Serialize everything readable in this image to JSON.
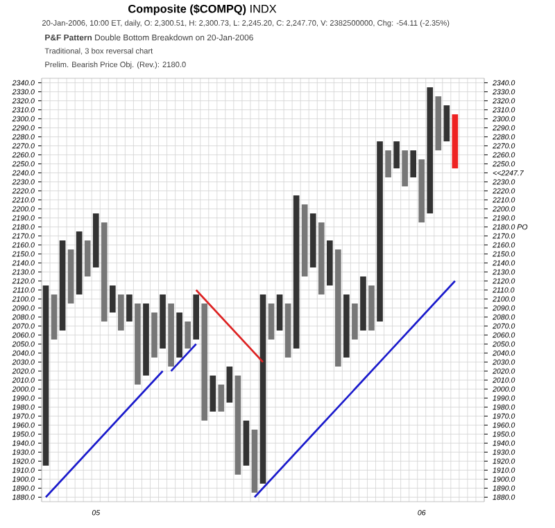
{
  "chart_data": {
    "type": "bar",
    "title": "**Composite ($COMPQ)** INDX",
    "subtitle": "20-Jan-2006, 10:00 ET, daily, O: 2,300.51, H: 2,300.73, L: 2,245.20, C: 2,247.70, V: 2382500000, Chg: -54.11 (-2.35%)",
    "annotations": [
      "**P&F Pattern** Double Bottom Breakdown on 20-Jan-2006",
      "Traditional, 3 box reversal chart",
      "Prelim. Bearish Price Obj. (Rev.): 2180.0"
    ],
    "series": [
      {
        "base": [
          1915,
          2055,
          2065,
          2095,
          2105,
          2125,
          2135,
          2075,
          2085,
          2065,
          2075,
          2005,
          2015,
          2035,
          2045,
          2025,
          2035,
          2045,
          2055,
          1965,
          1975,
          1975,
          1985,
          1905,
          1915,
          1885,
          1895,
          2055,
          2065,
          2035,
          2045,
          2125,
          2135,
          2105,
          2115,
          2025,
          2035,
          2055,
          2065,
          2065,
          2075,
          2235,
          2245,
          2225,
          2235,
          2185,
          2195,
          2265,
          2275,
          2245,
          null,
          null,
          null
        ],
        "values": [
          200,
          50,
          100,
          60,
          70,
          40,
          60,
          110,
          30,
          40,
          30,
          90,
          80,
          50,
          60,
          70,
          50,
          30,
          50,
          130,
          40,
          30,
          40,
          110,
          50,
          70,
          210,
          40,
          40,
          60,
          170,
          80,
          60,
          80,
          50,
          130,
          70,
          40,
          60,
          50,
          200,
          30,
          30,
          40,
          30,
          70,
          140,
          60,
          40,
          60,
          null,
          null,
          null
        ],
        "colors": [
          "#333333",
          "#777777",
          "#333333",
          "#777777",
          "#333333",
          "#777777",
          "#333333",
          "#777777",
          "#333333",
          "#777777",
          "#333333",
          "#777777",
          "#333333",
          "#777777",
          "#333333",
          "#777777",
          "#333333",
          "#777777",
          "#333333",
          "#777777",
          "#333333",
          "#777777",
          "#333333",
          "#777777",
          "#333333",
          "#777777",
          "#333333",
          "#777777",
          "#333333",
          "#777777",
          "#333333",
          "#777777",
          "#333333",
          "#777777",
          "#333333",
          "#777777",
          "#333333",
          "#777777",
          "#333333",
          "#777777",
          "#333333",
          "#777777",
          "#333333",
          "#777777",
          "#333333",
          "#777777",
          "#333333",
          "#777777",
          "#333333",
          "#ee2222",
          null,
          null,
          null
        ]
      },
      {
        "type": "line",
        "color": "#1a1acc",
        "values": [
          1880,
          1890,
          1900,
          1910,
          1920,
          1930,
          1940,
          1950,
          1960,
          1970,
          1980,
          1990,
          2000,
          2010,
          2020,
          null,
          null,
          null,
          null,
          null,
          null,
          null,
          null,
          null,
          null,
          null,
          null,
          null,
          null,
          null,
          null,
          null,
          null,
          null,
          null,
          null,
          null,
          null,
          null,
          null,
          null,
          null,
          null,
          null,
          null,
          null,
          null,
          null,
          null,
          null,
          null,
          null,
          null
        ]
      },
      {
        "type": "line",
        "color": "#1a1acc",
        "values": [
          null,
          null,
          null,
          null,
          null,
          null,
          null,
          null,
          null,
          null,
          null,
          null,
          null,
          null,
          null,
          2020,
          2030,
          2040,
          2050,
          null,
          null,
          null,
          null,
          null,
          null,
          null,
          null,
          null,
          null,
          null,
          null,
          null,
          null,
          null,
          null,
          null,
          null,
          null,
          null,
          null,
          null,
          null,
          null,
          null,
          null,
          null,
          null,
          null,
          null,
          null,
          null,
          null,
          null
        ]
      },
      {
        "type": "line",
        "color": "#1a1acc",
        "values": [
          null,
          null,
          null,
          null,
          null,
          null,
          null,
          null,
          null,
          null,
          null,
          null,
          null,
          null,
          null,
          null,
          null,
          null,
          null,
          null,
          null,
          null,
          null,
          null,
          null,
          1880,
          1890,
          1900,
          1910,
          1920,
          1930,
          1940,
          1950,
          1960,
          1970,
          1980,
          1990,
          2000,
          2010,
          2020,
          2030,
          2040,
          2050,
          2060,
          2070,
          2080,
          2090,
          2100,
          2110,
          2120,
          null,
          null,
          null
        ]
      },
      {
        "type": "line",
        "color": "#dd2222",
        "values": [
          null,
          null,
          null,
          null,
          null,
          null,
          null,
          null,
          null,
          null,
          null,
          null,
          null,
          null,
          null,
          null,
          null,
          null,
          2110,
          2100,
          2090,
          2080,
          2070,
          2060,
          2050,
          2040,
          2030,
          null,
          null,
          null,
          null,
          null,
          null,
          null,
          null,
          null,
          null,
          null,
          null,
          null,
          null,
          null,
          null,
          null,
          null,
          null,
          null,
          null,
          null,
          null,
          null,
          null,
          null
        ]
      }
    ],
    "categories": [
      null,
      null,
      null,
      null,
      null,
      null,
      "05",
      null,
      null,
      null,
      null,
      null,
      null,
      null,
      null,
      null,
      null,
      null,
      null,
      null,
      null,
      null,
      null,
      null,
      null,
      null,
      null,
      null,
      null,
      null,
      null,
      null,
      null,
      null,
      null,
      null,
      null,
      null,
      null,
      null,
      null,
      null,
      null,
      null,
      null,
      "06",
      null,
      null,
      null,
      null,
      null,
      null,
      null
    ],
    "ylim": [
      1875,
      2345
    ],
    "yticks": [
      {
        "value": 1880,
        "label": "1880.0"
      },
      {
        "value": 1890,
        "label": "1890.0"
      },
      {
        "value": 1900,
        "label": "1900.0"
      },
      {
        "value": 1910,
        "label": "1910.0"
      },
      {
        "value": 1920,
        "label": "1920.0"
      },
      {
        "value": 1930,
        "label": "1930.0"
      },
      {
        "value": 1940,
        "label": "1940.0"
      },
      {
        "value": 1950,
        "label": "1950.0"
      },
      {
        "value": 1960,
        "label": "1960.0"
      },
      {
        "value": 1970,
        "label": "1970.0"
      },
      {
        "value": 1980,
        "label": "1980.0"
      },
      {
        "value": 1990,
        "label": "1990.0"
      },
      {
        "value": 2000,
        "label": "2000.0"
      },
      {
        "value": 2010,
        "label": "2010.0"
      },
      {
        "value": 2020,
        "label": "2020.0"
      },
      {
        "value": 2030,
        "label": "2030.0"
      },
      {
        "value": 2040,
        "label": "2040.0"
      },
      {
        "value": 2050,
        "label": "2050.0"
      },
      {
        "value": 2060,
        "label": "2060.0"
      },
      {
        "value": 2070,
        "label": "2070.0"
      },
      {
        "value": 2080,
        "label": "2080.0"
      },
      {
        "value": 2090,
        "label": "2090.0"
      },
      {
        "value": 2100,
        "label": "2100.0"
      },
      {
        "value": 2110,
        "label": "2110.0"
      },
      {
        "value": 2120,
        "label": "2120.0"
      },
      {
        "value": 2130,
        "label": "2130.0"
      },
      {
        "value": 2140,
        "label": "2140.0"
      },
      {
        "value": 2150,
        "label": "2150.0"
      },
      {
        "value": 2160,
        "label": "2160.0"
      },
      {
        "value": 2170,
        "label": "2170.0"
      },
      {
        "value": 2180,
        "label": "2180.0"
      },
      {
        "value": 2190,
        "label": "2190.0"
      },
      {
        "value": 2200,
        "label": "2200.0"
      },
      {
        "value": 2210,
        "label": "2210.0"
      },
      {
        "value": 2220,
        "label": "2220.0"
      },
      {
        "value": 2230,
        "label": "2230.0"
      },
      {
        "value": 2240,
        "label": "2240.0"
      },
      {
        "value": 2250,
        "label": "2250.0"
      },
      {
        "value": 2260,
        "label": "2260.0"
      },
      {
        "value": 2270,
        "label": "2270.0"
      },
      {
        "value": 2280,
        "label": "2280.0"
      },
      {
        "value": 2290,
        "label": "2290.0"
      },
      {
        "value": 2300,
        "label": "2300.0"
      },
      {
        "value": 2310,
        "label": "2310.0"
      },
      {
        "value": 2320,
        "label": "2320.0"
      },
      {
        "value": 2330,
        "label": "2330.0"
      },
      {
        "value": 2340,
        "label": "2340.0"
      }
    ],
    "y2lim": [
      1875,
      2345
    ],
    "y2ticks": [
      {
        "value": 1880,
        "label": "1880.0"
      },
      {
        "value": 1890,
        "label": "1890.0"
      },
      {
        "value": 1900,
        "label": "1900.0"
      },
      {
        "value": 1910,
        "label": "1910.0"
      },
      {
        "value": 1920,
        "label": "1920.0"
      },
      {
        "value": 1930,
        "label": "1930.0"
      },
      {
        "value": 1940,
        "label": "1940.0"
      },
      {
        "value": 1950,
        "label": "1950.0"
      },
      {
        "value": 1960,
        "label": "1960.0"
      },
      {
        "value": 1970,
        "label": "1970.0"
      },
      {
        "value": 1980,
        "label": "1980.0"
      },
      {
        "value": 1990,
        "label": "1990.0"
      },
      {
        "value": 2000,
        "label": "2000.0"
      },
      {
        "value": 2010,
        "label": "2010.0"
      },
      {
        "value": 2020,
        "label": "2020.0"
      },
      {
        "value": 2030,
        "label": "2030.0"
      },
      {
        "value": 2040,
        "label": "2040.0"
      },
      {
        "value": 2050,
        "label": "2050.0"
      },
      {
        "value": 2060,
        "label": "2060.0"
      },
      {
        "value": 2070,
        "label": "2070.0"
      },
      {
        "value": 2080,
        "label": "2080.0"
      },
      {
        "value": 2090,
        "label": "2090.0"
      },
      {
        "value": 2100,
        "label": "2100.0"
      },
      {
        "value": 2110,
        "label": "2110.0"
      },
      {
        "value": 2120,
        "label": "2120.0"
      },
      {
        "value": 2130,
        "label": "2130.0"
      },
      {
        "value": 2140,
        "label": "2140.0"
      },
      {
        "value": 2150,
        "label": "2150.0"
      },
      {
        "value": 2160,
        "label": "2160.0"
      },
      {
        "value": 2170,
        "label": "2170.0"
      },
      {
        "value": 2180,
        "label": "2180.0 PO"
      },
      {
        "value": 2190,
        "label": "2190.0"
      },
      {
        "value": 2200,
        "label": "2200.0"
      },
      {
        "value": 2210,
        "label": "2210.0"
      },
      {
        "value": 2220,
        "label": "2220.0"
      },
      {
        "value": 2230,
        "label": "2230.0"
      },
      {
        "value": 2240,
        "label": "<<2247.7"
      },
      {
        "value": 2250,
        "label": "2250.0"
      },
      {
        "value": 2260,
        "label": "2260.0"
      },
      {
        "value": 2270,
        "label": "2270.0"
      },
      {
        "value": 2280,
        "label": "2280.0"
      },
      {
        "value": 2290,
        "label": "2290.0"
      },
      {
        "value": 2300,
        "label": "2300.0"
      },
      {
        "value": 2310,
        "label": "2310.0"
      },
      {
        "value": 2320,
        "label": "2320.0"
      },
      {
        "value": 2330,
        "label": "2330.0"
      },
      {
        "value": 2340,
        "label": "2340.0"
      }
    ],
    "grid": true
  }
}
